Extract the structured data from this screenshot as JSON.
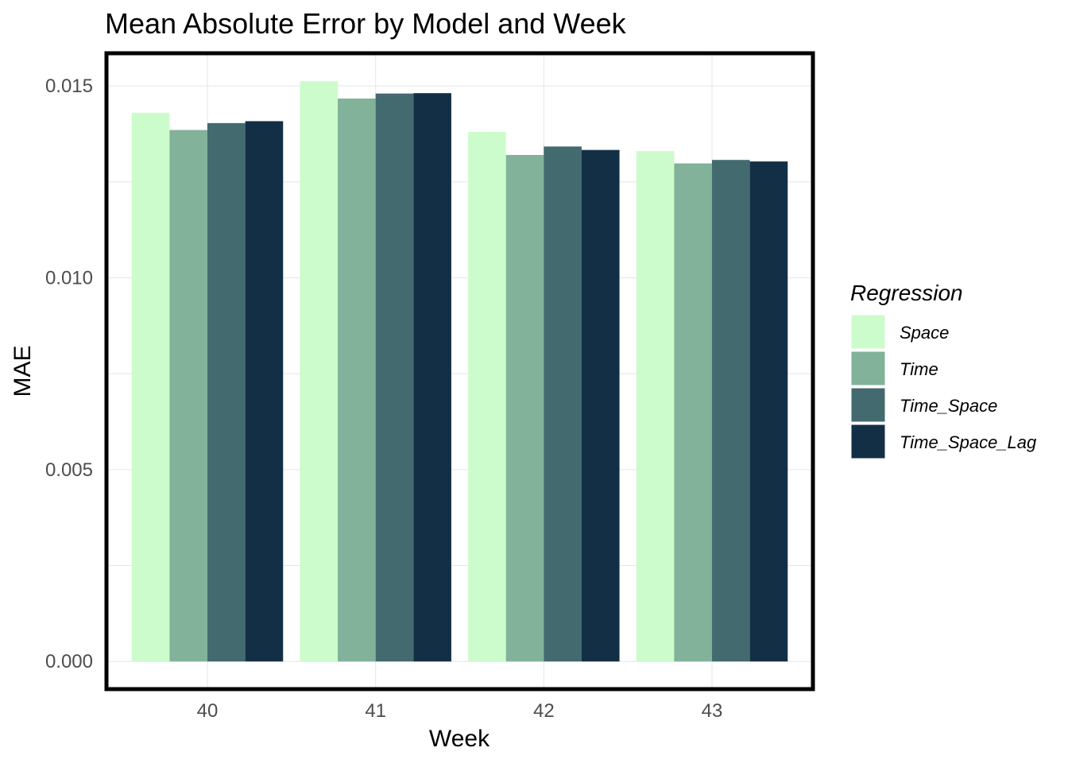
{
  "chart_data": {
    "type": "bar",
    "title": "Mean Absolute Error by Model and Week",
    "xlabel": "Week",
    "ylabel": "MAE",
    "categories": [
      "40",
      "41",
      "42",
      "43"
    ],
    "series": [
      {
        "name": "Space",
        "color": "#ccfccb",
        "values": [
          0.0143,
          0.01512,
          0.0138,
          0.0133
        ]
      },
      {
        "name": "Time",
        "color": "#82b29a",
        "values": [
          0.01385,
          0.01467,
          0.0132,
          0.01298
        ]
      },
      {
        "name": "Time_Space",
        "color": "#436a6e",
        "values": [
          0.01403,
          0.0148,
          0.01342,
          0.01307
        ]
      },
      {
        "name": "Time_Space_Lag",
        "color": "#122f46",
        "values": [
          0.01408,
          0.01481,
          0.01333,
          0.01303
        ]
      }
    ],
    "ylim": [
      -0.00072,
      0.01585
    ],
    "yticks": [
      "0.000",
      "0.005",
      "0.010",
      "0.015"
    ],
    "grid": true,
    "legend": {
      "title": "Regression",
      "position": "right"
    }
  }
}
